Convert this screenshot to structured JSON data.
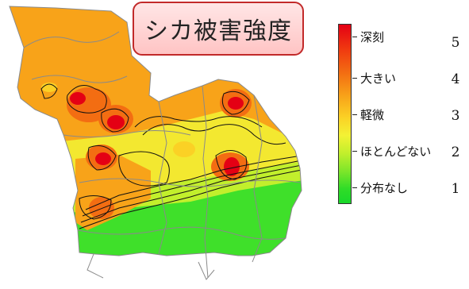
{
  "title": "シカ被害強度",
  "legend": {
    "items": [
      {
        "label": "深刻",
        "value": "5"
      },
      {
        "label": "大きい",
        "value": "4"
      },
      {
        "label": "軽微",
        "value": "3"
      },
      {
        "label": "ほとんどない",
        "value": "2"
      },
      {
        "label": "分布なし",
        "value": "1"
      }
    ]
  },
  "colors": {
    "severe": "#e40014",
    "large": "#f36d12",
    "minor": "#fbd125",
    "almost_none": "#c2ef2c",
    "none": "#19d82a",
    "contour": "#111111",
    "boundary": "#8a8a8a",
    "title_border": "#c22a2a",
    "title_fill": "#ffd0d0"
  }
}
